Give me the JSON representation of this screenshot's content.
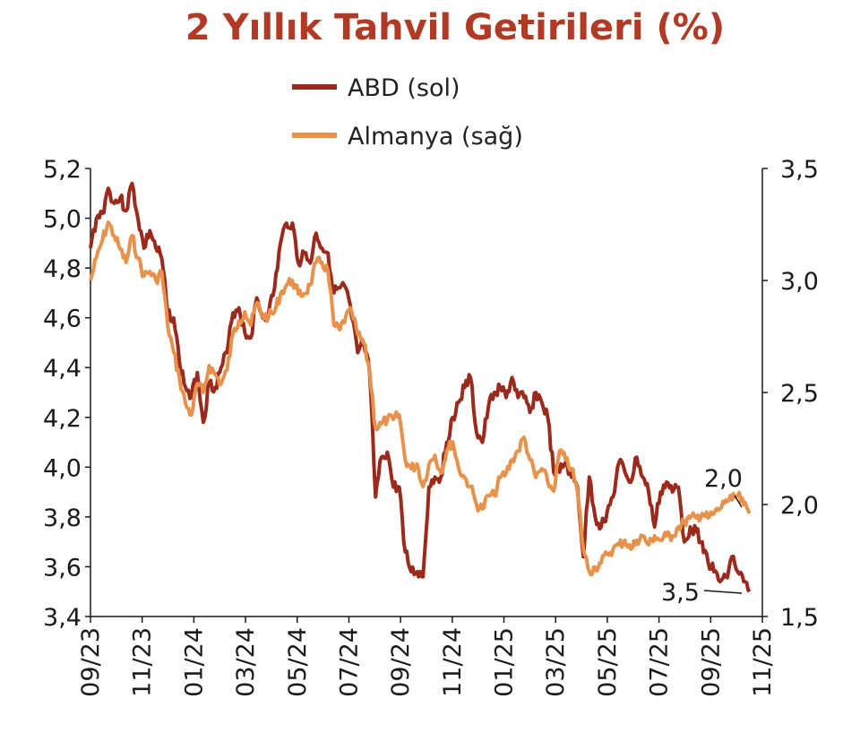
{
  "chart_data": {
    "type": "line",
    "title": "2 Yıllık Tahvil Getirileri (%)",
    "colors": {
      "abd": "#9c2a1c",
      "almanya": "#e8914a",
      "title": "#b23a24"
    },
    "x_ticks": [
      "09/23",
      "11/23",
      "01/24",
      "03/24",
      "05/24",
      "07/24",
      "09/24",
      "11/24",
      "01/25",
      "03/25",
      "05/25",
      "07/25",
      "09/25",
      "11/25"
    ],
    "x_range": [
      "2023-09-01",
      "2025-11-01"
    ],
    "y_left": {
      "min": 3.4,
      "max": 5.2,
      "ticks": [
        "3,4",
        "3,6",
        "3,8",
        "4,0",
        "4,2",
        "4,4",
        "4,6",
        "4,8",
        "5,0",
        "5,2"
      ]
    },
    "y_right": {
      "min": 1.5,
      "max": 3.5,
      "ticks": [
        "1,5",
        "2,0",
        "2,5",
        "3,0",
        "3,5"
      ]
    },
    "legend": {
      "placement": "top-center"
    },
    "annotations": [
      {
        "text": "2,0",
        "series": "almanya"
      },
      {
        "text": "3,5",
        "series": "abd"
      }
    ],
    "series": [
      {
        "name": "ABD (sol)",
        "axis": "left",
        "points": [
          [
            "2023-09-01",
            4.88
          ],
          [
            "2023-09-08",
            5.0
          ],
          [
            "2023-09-15",
            5.02
          ],
          [
            "2023-09-22",
            5.12
          ],
          [
            "2023-09-29",
            5.06
          ],
          [
            "2023-10-06",
            5.08
          ],
          [
            "2023-10-13",
            5.03
          ],
          [
            "2023-10-20",
            5.14
          ],
          [
            "2023-10-27",
            5.0
          ],
          [
            "2023-11-03",
            4.88
          ],
          [
            "2023-11-10",
            4.95
          ],
          [
            "2023-11-17",
            4.88
          ],
          [
            "2023-11-24",
            4.84
          ],
          [
            "2023-12-01",
            4.62
          ],
          [
            "2023-12-08",
            4.6
          ],
          [
            "2023-12-15",
            4.42
          ],
          [
            "2023-12-22",
            4.32
          ],
          [
            "2023-12-29",
            4.28
          ],
          [
            "2024-01-05",
            4.38
          ],
          [
            "2024-01-12",
            4.18
          ],
          [
            "2024-01-19",
            4.34
          ],
          [
            "2024-01-26",
            4.32
          ],
          [
            "2024-02-02",
            4.4
          ],
          [
            "2024-02-09",
            4.46
          ],
          [
            "2024-02-16",
            4.62
          ],
          [
            "2024-02-23",
            4.64
          ],
          [
            "2024-03-01",
            4.54
          ],
          [
            "2024-03-08",
            4.52
          ],
          [
            "2024-03-15",
            4.68
          ],
          [
            "2024-03-22",
            4.6
          ],
          [
            "2024-03-29",
            4.62
          ],
          [
            "2024-04-05",
            4.72
          ],
          [
            "2024-04-12",
            4.9
          ],
          [
            "2024-04-19",
            4.98
          ],
          [
            "2024-04-26",
            4.98
          ],
          [
            "2024-05-03",
            4.82
          ],
          [
            "2024-05-10",
            4.86
          ],
          [
            "2024-05-17",
            4.82
          ],
          [
            "2024-05-24",
            4.94
          ],
          [
            "2024-05-31",
            4.88
          ],
          [
            "2024-06-07",
            4.86
          ],
          [
            "2024-06-14",
            4.7
          ],
          [
            "2024-06-21",
            4.72
          ],
          [
            "2024-06-28",
            4.72
          ],
          [
            "2024-07-05",
            4.6
          ],
          [
            "2024-07-12",
            4.46
          ],
          [
            "2024-07-19",
            4.5
          ],
          [
            "2024-07-26",
            4.38
          ],
          [
            "2024-08-02",
            3.88
          ],
          [
            "2024-08-09",
            4.04
          ],
          [
            "2024-08-16",
            4.06
          ],
          [
            "2024-08-23",
            3.92
          ],
          [
            "2024-08-30",
            3.92
          ],
          [
            "2024-09-06",
            3.66
          ],
          [
            "2024-09-13",
            3.58
          ],
          [
            "2024-09-20",
            3.58
          ],
          [
            "2024-09-27",
            3.56
          ],
          [
            "2024-10-04",
            3.92
          ],
          [
            "2024-10-11",
            3.96
          ],
          [
            "2024-10-18",
            3.96
          ],
          [
            "2024-10-25",
            4.1
          ],
          [
            "2024-11-01",
            4.2
          ],
          [
            "2024-11-08",
            4.26
          ],
          [
            "2024-11-15",
            4.32
          ],
          [
            "2024-11-22",
            4.36
          ],
          [
            "2024-11-29",
            4.14
          ],
          [
            "2024-12-06",
            4.1
          ],
          [
            "2024-12-13",
            4.24
          ],
          [
            "2024-12-20",
            4.3
          ],
          [
            "2024-12-27",
            4.32
          ],
          [
            "2025-01-03",
            4.28
          ],
          [
            "2025-01-10",
            4.36
          ],
          [
            "2025-01-17",
            4.28
          ],
          [
            "2025-01-24",
            4.28
          ],
          [
            "2025-01-31",
            4.22
          ],
          [
            "2025-02-07",
            4.3
          ],
          [
            "2025-02-14",
            4.26
          ],
          [
            "2025-02-21",
            4.2
          ],
          [
            "2025-02-28",
            3.98
          ],
          [
            "2025-03-07",
            3.98
          ],
          [
            "2025-03-14",
            4.02
          ],
          [
            "2025-03-21",
            3.96
          ],
          [
            "2025-03-28",
            3.92
          ],
          [
            "2025-04-04",
            3.64
          ],
          [
            "2025-04-11",
            3.96
          ],
          [
            "2025-04-18",
            3.8
          ],
          [
            "2025-04-25",
            3.76
          ],
          [
            "2025-05-02",
            3.82
          ],
          [
            "2025-05-09",
            3.88
          ],
          [
            "2025-05-16",
            4.02
          ],
          [
            "2025-05-23",
            3.98
          ],
          [
            "2025-05-30",
            3.94
          ],
          [
            "2025-06-06",
            4.04
          ],
          [
            "2025-06-13",
            3.96
          ],
          [
            "2025-06-20",
            3.9
          ],
          [
            "2025-06-27",
            3.76
          ],
          [
            "2025-07-04",
            3.9
          ],
          [
            "2025-07-11",
            3.94
          ],
          [
            "2025-07-18",
            3.9
          ],
          [
            "2025-07-25",
            3.92
          ],
          [
            "2025-08-01",
            3.7
          ],
          [
            "2025-08-08",
            3.76
          ],
          [
            "2025-08-15",
            3.74
          ],
          [
            "2025-08-22",
            3.7
          ],
          [
            "2025-08-29",
            3.62
          ],
          [
            "2025-09-05",
            3.58
          ],
          [
            "2025-09-12",
            3.54
          ],
          [
            "2025-09-19",
            3.56
          ],
          [
            "2025-09-26",
            3.64
          ],
          [
            "2025-10-03",
            3.58
          ],
          [
            "2025-10-10",
            3.54
          ],
          [
            "2025-10-17",
            3.5
          ]
        ]
      },
      {
        "name": "Almanya (sağ)",
        "axis": "right",
        "points": [
          [
            "2023-09-01",
            3.0
          ],
          [
            "2023-09-08",
            3.1
          ],
          [
            "2023-09-15",
            3.18
          ],
          [
            "2023-09-22",
            3.26
          ],
          [
            "2023-09-29",
            3.2
          ],
          [
            "2023-10-06",
            3.14
          ],
          [
            "2023-10-13",
            3.08
          ],
          [
            "2023-10-20",
            3.2
          ],
          [
            "2023-10-27",
            3.1
          ],
          [
            "2023-11-03",
            3.02
          ],
          [
            "2023-11-10",
            3.04
          ],
          [
            "2023-11-17",
            3.0
          ],
          [
            "2023-11-24",
            3.04
          ],
          [
            "2023-12-01",
            2.8
          ],
          [
            "2023-12-08",
            2.68
          ],
          [
            "2023-12-15",
            2.56
          ],
          [
            "2023-12-22",
            2.45
          ],
          [
            "2023-12-29",
            2.4
          ],
          [
            "2024-01-05",
            2.54
          ],
          [
            "2024-01-12",
            2.5
          ],
          [
            "2024-01-19",
            2.62
          ],
          [
            "2024-01-26",
            2.58
          ],
          [
            "2024-02-02",
            2.54
          ],
          [
            "2024-02-09",
            2.6
          ],
          [
            "2024-02-16",
            2.76
          ],
          [
            "2024-02-23",
            2.82
          ],
          [
            "2024-03-01",
            2.86
          ],
          [
            "2024-03-08",
            2.8
          ],
          [
            "2024-03-15",
            2.9
          ],
          [
            "2024-03-22",
            2.84
          ],
          [
            "2024-03-29",
            2.84
          ],
          [
            "2024-04-05",
            2.86
          ],
          [
            "2024-04-12",
            2.94
          ],
          [
            "2024-04-19",
            2.98
          ],
          [
            "2024-04-26",
            3.0
          ],
          [
            "2024-05-03",
            2.94
          ],
          [
            "2024-05-10",
            2.94
          ],
          [
            "2024-05-17",
            2.98
          ],
          [
            "2024-05-24",
            3.08
          ],
          [
            "2024-05-31",
            3.08
          ],
          [
            "2024-06-07",
            3.04
          ],
          [
            "2024-06-14",
            2.8
          ],
          [
            "2024-06-21",
            2.78
          ],
          [
            "2024-06-28",
            2.84
          ],
          [
            "2024-07-05",
            2.86
          ],
          [
            "2024-07-12",
            2.76
          ],
          [
            "2024-07-19",
            2.72
          ],
          [
            "2024-07-26",
            2.6
          ],
          [
            "2024-08-02",
            2.34
          ],
          [
            "2024-08-09",
            2.36
          ],
          [
            "2024-08-16",
            2.38
          ],
          [
            "2024-08-23",
            2.38
          ],
          [
            "2024-08-30",
            2.4
          ],
          [
            "2024-09-06",
            2.2
          ],
          [
            "2024-09-13",
            2.16
          ],
          [
            "2024-09-20",
            2.18
          ],
          [
            "2024-09-27",
            2.08
          ],
          [
            "2024-10-04",
            2.18
          ],
          [
            "2024-10-11",
            2.22
          ],
          [
            "2024-10-18",
            2.14
          ],
          [
            "2024-10-25",
            2.24
          ],
          [
            "2024-11-01",
            2.28
          ],
          [
            "2024-11-08",
            2.16
          ],
          [
            "2024-11-15",
            2.12
          ],
          [
            "2024-11-22",
            2.08
          ],
          [
            "2024-11-29",
            2.0
          ],
          [
            "2024-12-06",
            1.98
          ],
          [
            "2024-12-13",
            2.04
          ],
          [
            "2024-12-20",
            2.04
          ],
          [
            "2024-12-27",
            2.12
          ],
          [
            "2025-01-03",
            2.14
          ],
          [
            "2025-01-10",
            2.2
          ],
          [
            "2025-01-17",
            2.24
          ],
          [
            "2025-01-24",
            2.3
          ],
          [
            "2025-01-31",
            2.2
          ],
          [
            "2025-02-07",
            2.12
          ],
          [
            "2025-02-14",
            2.16
          ],
          [
            "2025-02-21",
            2.1
          ],
          [
            "2025-02-28",
            2.06
          ],
          [
            "2025-03-07",
            2.24
          ],
          [
            "2025-03-14",
            2.2
          ],
          [
            "2025-03-21",
            2.16
          ],
          [
            "2025-03-28",
            2.06
          ],
          [
            "2025-04-04",
            1.8
          ],
          [
            "2025-04-11",
            1.7
          ],
          [
            "2025-04-18",
            1.72
          ],
          [
            "2025-04-25",
            1.74
          ],
          [
            "2025-05-02",
            1.78
          ],
          [
            "2025-05-09",
            1.8
          ],
          [
            "2025-05-16",
            1.82
          ],
          [
            "2025-05-23",
            1.84
          ],
          [
            "2025-05-30",
            1.8
          ],
          [
            "2025-06-06",
            1.84
          ],
          [
            "2025-06-13",
            1.86
          ],
          [
            "2025-06-20",
            1.82
          ],
          [
            "2025-06-27",
            1.86
          ],
          [
            "2025-07-04",
            1.84
          ],
          [
            "2025-07-11",
            1.86
          ],
          [
            "2025-07-18",
            1.86
          ],
          [
            "2025-07-25",
            1.9
          ],
          [
            "2025-08-01",
            1.92
          ],
          [
            "2025-08-08",
            1.94
          ],
          [
            "2025-08-15",
            1.94
          ],
          [
            "2025-08-22",
            1.96
          ],
          [
            "2025-08-29",
            1.94
          ],
          [
            "2025-09-05",
            1.96
          ],
          [
            "2025-09-12",
            1.98
          ],
          [
            "2025-09-19",
            2.02
          ],
          [
            "2025-09-26",
            2.02
          ],
          [
            "2025-10-03",
            2.04
          ],
          [
            "2025-10-10",
            2.0
          ],
          [
            "2025-10-17",
            1.96
          ]
        ]
      }
    ]
  }
}
